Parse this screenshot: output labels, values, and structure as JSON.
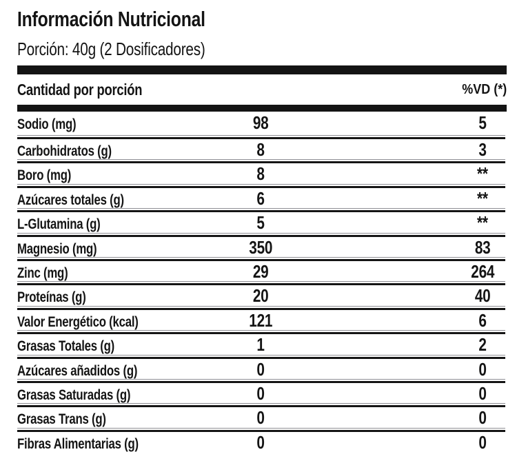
{
  "title": "Información Nutricional",
  "serving": "Porción: 40g (2 Dosificadores)",
  "table": {
    "header": {
      "amount_label": "Cantidad por porción",
      "vd_label": "%VD (*)"
    },
    "rows": [
      {
        "label": "Sodio (mg)",
        "amount": "98",
        "vd": "5"
      },
      {
        "label": "Carbohidratos (g)",
        "amount": "8",
        "vd": "3"
      },
      {
        "label": "Boro (mg)",
        "amount": "8",
        "vd": "**"
      },
      {
        "label": "Azúcares totales (g)",
        "amount": "6",
        "vd": "**"
      },
      {
        "label": "L-Glutamina (g)",
        "amount": "5",
        "vd": "**"
      },
      {
        "label": "Magnesio (mg)",
        "amount": "350",
        "vd": "83"
      },
      {
        "label": "Zinc (mg)",
        "amount": "29",
        "vd": "264"
      },
      {
        "label": "Proteínas (g)",
        "amount": "20",
        "vd": "40"
      },
      {
        "label": "Valor Energético (kcal)",
        "amount": "121",
        "vd": "6"
      },
      {
        "label": "Grasas Totales (g)",
        "amount": "1",
        "vd": "2"
      },
      {
        "label": "Azúcares añadidos (g)",
        "amount": "0",
        "vd": "0"
      },
      {
        "label": "Grasas Saturadas (g)",
        "amount": "0",
        "vd": "0"
      },
      {
        "label": "Grasas Trans (g)",
        "amount": "0",
        "vd": "0"
      },
      {
        "label": "Fibras Alimentarias (g)",
        "amount": "0",
        "vd": "0"
      }
    ]
  },
  "colors": {
    "ink": "#141414",
    "background": "#ffffff",
    "separator_thin": "#8e8e94"
  }
}
